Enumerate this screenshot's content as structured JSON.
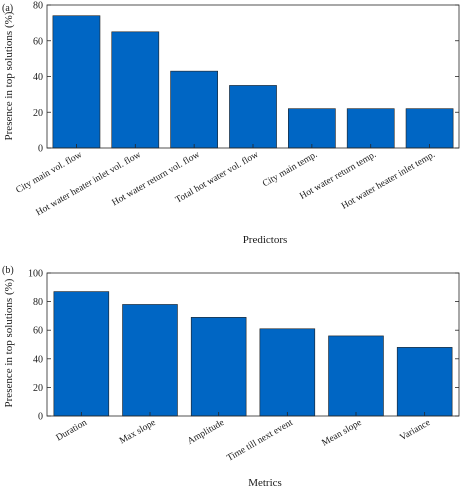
{
  "chart_data": [
    {
      "panel_label": "(a)",
      "type": "bar",
      "categories": [
        "City main vol. flow",
        "Hot water heater inlet vol. flow",
        "Hot water return vol. flow",
        "Total hot water vol. flow",
        "City main temp.",
        "Hot water return temp.",
        "Hot water heater inlet temp."
      ],
      "values": [
        74,
        65,
        43,
        35,
        22,
        22,
        22
      ],
      "xlabel": "Predictors",
      "ylabel": "Presence in top solutions (%)",
      "ylim": [
        0,
        80
      ],
      "yticks": [
        "0",
        "20",
        "40",
        "60",
        "80"
      ],
      "bar_color": "#0066c4",
      "grid": false
    },
    {
      "panel_label": "(b)",
      "type": "bar",
      "categories": [
        "Duration",
        "Max slope",
        "Amplitude",
        "Time till next event",
        "Mean slope",
        "Variance"
      ],
      "values": [
        87,
        78,
        69,
        61,
        56,
        48
      ],
      "xlabel": "Metrics",
      "ylabel": "Presence in top solutions (%)",
      "ylim": [
        0,
        100
      ],
      "yticks": [
        "0",
        "20",
        "40",
        "60",
        "80",
        "100"
      ],
      "bar_color": "#0066c4",
      "grid": false
    }
  ]
}
